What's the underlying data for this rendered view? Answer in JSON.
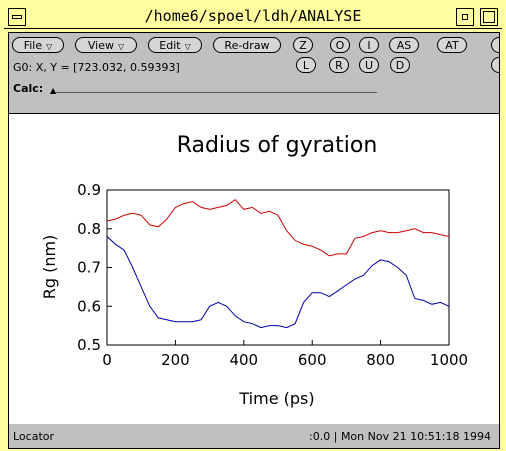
{
  "window": {
    "title": "/home6/spoel/ldh/ANALYSE"
  },
  "toolbar": {
    "menus": [
      {
        "label": "File"
      },
      {
        "label": "View"
      },
      {
        "label": "Edit"
      }
    ],
    "redraw_label": "Re-draw",
    "row1_buttons": [
      "Z",
      "O",
      "I",
      "AS",
      "AT"
    ],
    "row2_buttons": [
      "L",
      "R",
      "U",
      "D"
    ],
    "coordinates": "G0: X, Y = [723.032, 0.59393]",
    "calc_label": "Calc:"
  },
  "chart_data": {
    "type": "line",
    "title": "Radius of gyration",
    "xlabel": "Time (ps)",
    "ylabel": "Rg (nm)",
    "xlim": [
      0,
      1000
    ],
    "ylim": [
      0.5,
      0.9
    ],
    "xticks": [
      "0",
      "200",
      "400",
      "600",
      "800",
      "1000"
    ],
    "yticks": [
      "0.5",
      "0.6",
      "0.7",
      "0.8",
      "0.9"
    ],
    "grid": false,
    "series": [
      {
        "color": "#cc0000",
        "x": [
          0,
          25,
          50,
          75,
          100,
          125,
          150,
          175,
          200,
          225,
          250,
          275,
          300,
          325,
          350,
          375,
          400,
          425,
          450,
          475,
          500,
          525,
          550,
          575,
          600,
          625,
          650,
          675,
          700,
          725,
          750,
          775,
          800,
          825,
          850,
          875,
          900,
          925,
          950,
          975,
          1000
        ],
        "y": [
          0.82,
          0.825,
          0.835,
          0.84,
          0.835,
          0.81,
          0.805,
          0.825,
          0.855,
          0.865,
          0.87,
          0.855,
          0.85,
          0.855,
          0.86,
          0.875,
          0.85,
          0.855,
          0.84,
          0.845,
          0.835,
          0.795,
          0.77,
          0.76,
          0.755,
          0.745,
          0.73,
          0.735,
          0.735,
          0.775,
          0.78,
          0.79,
          0.795,
          0.79,
          0.79,
          0.795,
          0.8,
          0.79,
          0.79,
          0.785,
          0.78
        ]
      },
      {
        "color": "#0000aa",
        "x": [
          0,
          25,
          50,
          75,
          100,
          125,
          150,
          175,
          200,
          225,
          250,
          275,
          300,
          325,
          350,
          375,
          400,
          425,
          450,
          475,
          500,
          525,
          550,
          575,
          600,
          625,
          650,
          675,
          700,
          725,
          750,
          775,
          800,
          825,
          850,
          875,
          900,
          925,
          950,
          975,
          1000
        ],
        "y": [
          0.78,
          0.76,
          0.745,
          0.7,
          0.65,
          0.6,
          0.57,
          0.565,
          0.56,
          0.56,
          0.56,
          0.565,
          0.6,
          0.61,
          0.6,
          0.575,
          0.56,
          0.555,
          0.545,
          0.55,
          0.55,
          0.545,
          0.555,
          0.61,
          0.635,
          0.635,
          0.625,
          0.64,
          0.655,
          0.67,
          0.68,
          0.705,
          0.72,
          0.715,
          0.7,
          0.68,
          0.62,
          0.615,
          0.605,
          0.61,
          0.6
        ]
      }
    ]
  },
  "statusbar": {
    "left": "Locator",
    "right": ":0.0 | Mon Nov 21 10:51:18 1994"
  }
}
